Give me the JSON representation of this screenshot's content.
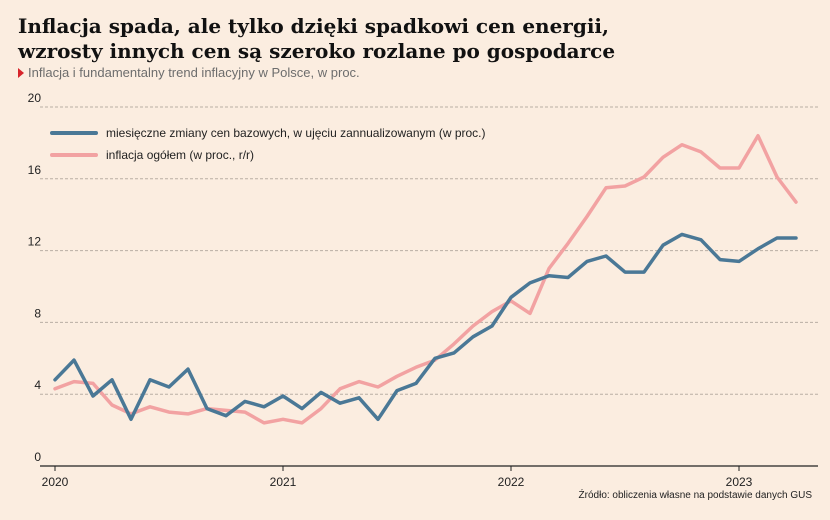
{
  "title": {
    "line1": "Inflacja spada, ale tylko dzięki spadkowi cen energii,",
    "line2": "wzrosty innych cen są szeroko rozlane po gospodarce"
  },
  "subtitle": "Inflacja i fundamentalny trend inflacyjny w Polsce, w proc.",
  "source": "Źródło: obliczenia własne na podstawie danych GUS",
  "chart_data": {
    "type": "line",
    "x": [
      "2020-01",
      "2020-02",
      "2020-03",
      "2020-04",
      "2020-05",
      "2020-06",
      "2020-07",
      "2020-08",
      "2020-09",
      "2020-10",
      "2020-11",
      "2020-12",
      "2021-01",
      "2021-02",
      "2021-03",
      "2021-04",
      "2021-05",
      "2021-06",
      "2021-07",
      "2021-08",
      "2021-09",
      "2021-10",
      "2021-11",
      "2021-12",
      "2022-01",
      "2022-02",
      "2022-03",
      "2022-04",
      "2022-05",
      "2022-06",
      "2022-07",
      "2022-08",
      "2022-09",
      "2022-10",
      "2022-11",
      "2022-12",
      "2023-01",
      "2023-02",
      "2023-03",
      "2023-04"
    ],
    "x_ticks": [
      "2020",
      "2021",
      "2022",
      "2023"
    ],
    "y_ticks": [
      0,
      4,
      8,
      12,
      16,
      20
    ],
    "ylim": [
      0,
      20
    ],
    "grid": true,
    "legend_position": "top-left",
    "series": [
      {
        "name": "miesięczne zmiany cen bazowych, w ujęciu zannualizowanym (w proc.)",
        "color": "#4a7896",
        "values": [
          4.8,
          5.9,
          3.9,
          4.8,
          2.6,
          4.8,
          4.4,
          5.4,
          3.2,
          2.8,
          3.6,
          3.3,
          3.9,
          3.2,
          4.1,
          3.5,
          3.8,
          2.6,
          4.2,
          4.6,
          6.0,
          6.3,
          7.2,
          7.8,
          9.4,
          10.2,
          10.6,
          10.5,
          11.4,
          11.7,
          10.8,
          10.8,
          12.3,
          12.9,
          12.6,
          11.5,
          11.4,
          12.1,
          12.7,
          12.7
        ]
      },
      {
        "name": "inflacja ogółem (w proc., r/r)",
        "color": "#f2a2a2",
        "values": [
          4.3,
          4.7,
          4.6,
          3.4,
          2.9,
          3.3,
          3.0,
          2.9,
          3.2,
          3.1,
          3.0,
          2.4,
          2.6,
          2.4,
          3.2,
          4.3,
          4.7,
          4.4,
          5.0,
          5.5,
          5.9,
          6.8,
          7.8,
          8.6,
          9.2,
          8.5,
          11.0,
          12.4,
          13.9,
          15.5,
          15.6,
          16.1,
          17.2,
          17.9,
          17.5,
          16.6,
          16.6,
          18.4,
          16.1,
          14.7
        ]
      }
    ]
  }
}
